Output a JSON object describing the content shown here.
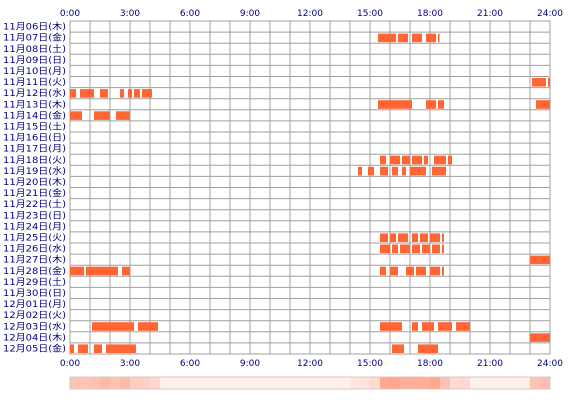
{
  "chart_data": {
    "type": "timeline-heatmap",
    "title": "",
    "x_axis": {
      "range_hours": [
        0,
        24
      ],
      "tick_labels": [
        "0:00",
        "3:00",
        "6:00",
        "9:00",
        "12:00",
        "15:00",
        "18:00",
        "21:00",
        "24:00"
      ]
    },
    "days": [
      {
        "label": "11月06日(木)",
        "segments": []
      },
      {
        "label": "11月07日(金)",
        "segments": [
          [
            15.4,
            16.3
          ],
          [
            16.4,
            16.9
          ],
          [
            17.1,
            17.6
          ],
          [
            17.8,
            18.3
          ],
          [
            18.4,
            18.4
          ]
        ]
      },
      {
        "label": "11月08日(土)",
        "segments": []
      },
      {
        "label": "11月09日(日)",
        "segments": []
      },
      {
        "label": "11月10日(月)",
        "segments": []
      },
      {
        "label": "11月11日(火)",
        "segments": [
          [
            23.1,
            23.8
          ],
          [
            23.9,
            24.0
          ]
        ]
      },
      {
        "label": "11月12日(水)",
        "segments": [
          [
            0.0,
            0.3
          ],
          [
            0.5,
            1.2
          ],
          [
            1.5,
            1.9
          ],
          [
            2.5,
            2.7
          ],
          [
            2.9,
            3.1
          ],
          [
            3.2,
            3.5
          ],
          [
            3.6,
            4.1
          ]
        ]
      },
      {
        "label": "11月13日(木)",
        "segments": [
          [
            15.4,
            17.1
          ],
          [
            17.8,
            18.3
          ],
          [
            18.4,
            18.7
          ],
          [
            23.3,
            24.0
          ]
        ]
      },
      {
        "label": "11月14日(金)",
        "segments": [
          [
            0.0,
            0.6
          ],
          [
            1.2,
            2.0
          ],
          [
            2.3,
            3.0
          ]
        ]
      },
      {
        "label": "11月15日(土)",
        "segments": []
      },
      {
        "label": "11月16日(日)",
        "segments": []
      },
      {
        "label": "11月17日(月)",
        "segments": []
      },
      {
        "label": "11月18日(火)",
        "segments": [
          [
            15.5,
            15.8
          ],
          [
            16.0,
            16.5
          ],
          [
            16.6,
            17.0
          ],
          [
            17.1,
            17.6
          ],
          [
            17.7,
            17.9
          ],
          [
            18.2,
            18.8
          ],
          [
            18.9,
            19.1
          ]
        ]
      },
      {
        "label": "11月19日(水)",
        "segments": [
          [
            14.4,
            14.6
          ],
          [
            14.9,
            15.2
          ],
          [
            15.5,
            15.9
          ],
          [
            16.1,
            16.4
          ],
          [
            16.6,
            16.8
          ],
          [
            17.0,
            17.8
          ],
          [
            18.1,
            18.8
          ]
        ]
      },
      {
        "label": "11月20日(木)",
        "segments": []
      },
      {
        "label": "11月21日(金)",
        "segments": []
      },
      {
        "label": "11月22日(土)",
        "segments": []
      },
      {
        "label": "11月23日(日)",
        "segments": []
      },
      {
        "label": "11月24日(月)",
        "segments": []
      },
      {
        "label": "11月25日(火)",
        "segments": [
          [
            15.5,
            15.9
          ],
          [
            16.0,
            16.3
          ],
          [
            16.4,
            16.9
          ],
          [
            17.1,
            17.4
          ],
          [
            17.5,
            17.9
          ],
          [
            18.0,
            18.5
          ],
          [
            18.6,
            18.7
          ]
        ]
      },
      {
        "label": "11月26日(水)",
        "segments": [
          [
            15.5,
            16.0
          ],
          [
            16.1,
            16.4
          ],
          [
            16.5,
            17.0
          ],
          [
            17.1,
            17.5
          ],
          [
            17.6,
            18.0
          ],
          [
            18.1,
            18.5
          ],
          [
            18.6,
            18.7
          ]
        ]
      },
      {
        "label": "11月27日(木)",
        "segments": [
          [
            23.0,
            24.0
          ]
        ]
      },
      {
        "label": "11月28日(金)",
        "segments": [
          [
            0.0,
            0.7
          ],
          [
            0.8,
            2.4
          ],
          [
            2.6,
            3.0
          ],
          [
            15.5,
            15.8
          ],
          [
            16.0,
            16.4
          ],
          [
            16.8,
            17.2
          ],
          [
            17.3,
            17.8
          ],
          [
            18.0,
            18.5
          ],
          [
            18.6,
            18.7
          ]
        ]
      },
      {
        "label": "11月29日(土)",
        "segments": []
      },
      {
        "label": "11月30日(日)",
        "segments": []
      },
      {
        "label": "12月01日(月)",
        "segments": []
      },
      {
        "label": "12月02日(火)",
        "segments": []
      },
      {
        "label": "12月03日(水)",
        "segments": [
          [
            1.1,
            3.2
          ],
          [
            3.4,
            4.4
          ],
          [
            15.5,
            16.6
          ],
          [
            17.1,
            17.4
          ],
          [
            17.6,
            18.2
          ],
          [
            18.4,
            19.1
          ],
          [
            19.3,
            20.0
          ]
        ]
      },
      {
        "label": "12月04日(木)",
        "segments": [
          [
            23.0,
            24.0
          ]
        ]
      },
      {
        "label": "12月05日(金)",
        "segments": [
          [
            0.0,
            0.2
          ],
          [
            0.4,
            0.9
          ],
          [
            1.2,
            1.6
          ],
          [
            1.8,
            3.3
          ],
          [
            16.1,
            16.7
          ],
          [
            17.4,
            18.4
          ]
        ]
      }
    ],
    "colors": {
      "bar": "#ff6633",
      "grid": "#a0a0a0",
      "label": "#000080",
      "summary_low": "#fff0ec",
      "summary_high": "#ffa58c"
    },
    "summary_strip": true,
    "grid": true
  }
}
